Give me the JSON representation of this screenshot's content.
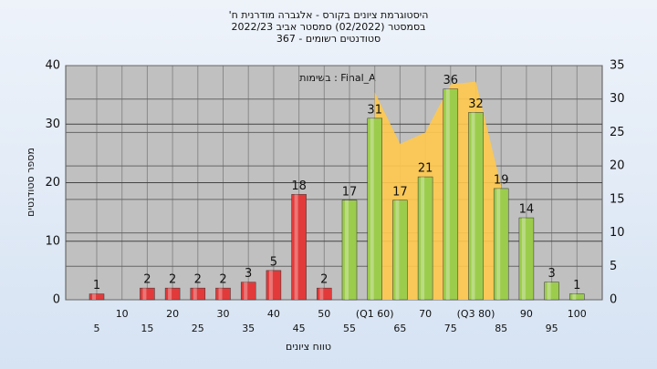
{
  "chart_data": {
    "type": "bar",
    "title": [
      "היסטוגרמת ציונים בקורס - אלגברה מודרנית ח'",
      "בסמסטר  (02/2022)  סמסטר אביב 2022/23",
      "סטודנטים רשומים - 367"
    ],
    "annotation": "בשימות : Final_A",
    "xlabel": "טווח ציונים",
    "ylabel": "מספר סטודנטים",
    "categories": [
      "5",
      "10",
      "15",
      "20",
      "25",
      "30",
      "35",
      "40",
      "45",
      "50",
      "55",
      "(Q1 60)",
      "65",
      "70",
      "75",
      "(Q3 80)",
      "85",
      "90",
      "95",
      "100"
    ],
    "values": [
      1,
      0,
      2,
      2,
      2,
      2,
      3,
      5,
      18,
      2,
      17,
      31,
      17,
      21,
      36,
      32,
      19,
      14,
      3,
      1
    ],
    "colors": [
      "#e23a3a",
      "#e23a3a",
      "#e23a3a",
      "#e23a3a",
      "#e23a3a",
      "#e23a3a",
      "#e23a3a",
      "#e23a3a",
      "#e23a3a",
      "#e23a3a",
      "#9ccc4c",
      "#9ccc4c",
      "#9ccc4c",
      "#9ccc4c",
      "#9ccc4c",
      "#9ccc4c",
      "#9ccc4c",
      "#9ccc4c",
      "#9ccc4c",
      "#9ccc4c"
    ],
    "area": {
      "values": [
        null,
        null,
        null,
        null,
        null,
        null,
        null,
        null,
        null,
        null,
        null,
        31,
        23.3,
        25,
        32.2,
        32.6,
        17,
        null,
        null,
        null
      ],
      "color": "#ffc94d",
      "axis": "y2"
    },
    "ylim": [
      0,
      40
    ],
    "yticks": [
      0,
      10,
      20,
      30,
      40
    ],
    "y2lim": [
      0,
      35
    ],
    "y2ticks": [
      0,
      5,
      10,
      15,
      20,
      25,
      30,
      35
    ],
    "grid": true
  }
}
